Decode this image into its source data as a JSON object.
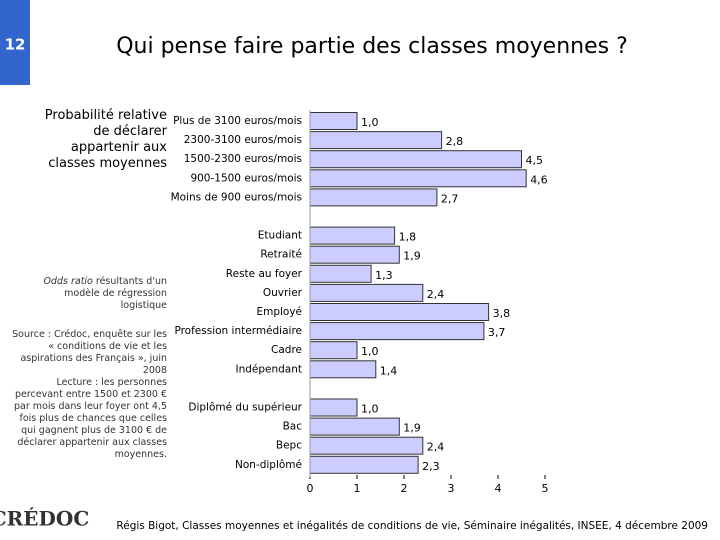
{
  "slide_number": "12",
  "side": {
    "label": "Probabilité relative de déclarer appartenir aux classes moyennes",
    "note_italic": "Odds ratio",
    "note_text": " résultants d'un modèle de régression logistique",
    "source": "Source : Crédoc, enquête sur les « conditions de vie et les aspirations des Français », juin 2008",
    "reading": "Lecture : les personnes percevant entre 1500 et 2300 € par mois dans leur foyer ont 4,5 fois plus de chances que celles qui gagnent plus de 3100 € de déclarer appartenir aux classes moyennes."
  },
  "footer": {
    "logo": "CRÉDOC",
    "text": "Régis Bigot, Classes moyennes et inégalités de conditions de vie, Séminaire inégalités, INSEE, 4 décembre 2009"
  },
  "chart_data": {
    "type": "hbar",
    "title": "Qui pense faire partie des classes moyennes ?",
    "categories": [
      "Plus de 3100 euros/mois",
      "2300-3100 euros/mois",
      "1500-2300 euros/mois",
      "900-1500 euros/mois",
      "Moins de 900 euros/mois",
      null,
      "Etudiant",
      "Retraité",
      "Reste au foyer",
      "Ouvrier",
      "Employé",
      "Profession intermédiaire",
      "Cadre",
      "Indépendant",
      null,
      "Diplômé du supérieur",
      "Bac",
      "Bepc",
      "Non-diplômé"
    ],
    "values": [
      1.0,
      2.8,
      4.5,
      4.6,
      2.7,
      null,
      1.8,
      1.9,
      1.3,
      2.4,
      3.8,
      3.7,
      1.0,
      1.4,
      null,
      1.0,
      1.9,
      2.4,
      2.3
    ],
    "value_labels": [
      "1,0",
      "2,8",
      "4,5",
      "4,6",
      "2,7",
      null,
      "1,8",
      "1,9",
      "1,3",
      "2,4",
      "3,8",
      "3,7",
      "1,0",
      "1,4",
      null,
      "1,0",
      "1,9",
      "2,4",
      "2,3"
    ],
    "color": "#ccccff",
    "xlim": [
      0,
      5
    ],
    "xticks": [
      0,
      1,
      2,
      3,
      4,
      5
    ]
  }
}
